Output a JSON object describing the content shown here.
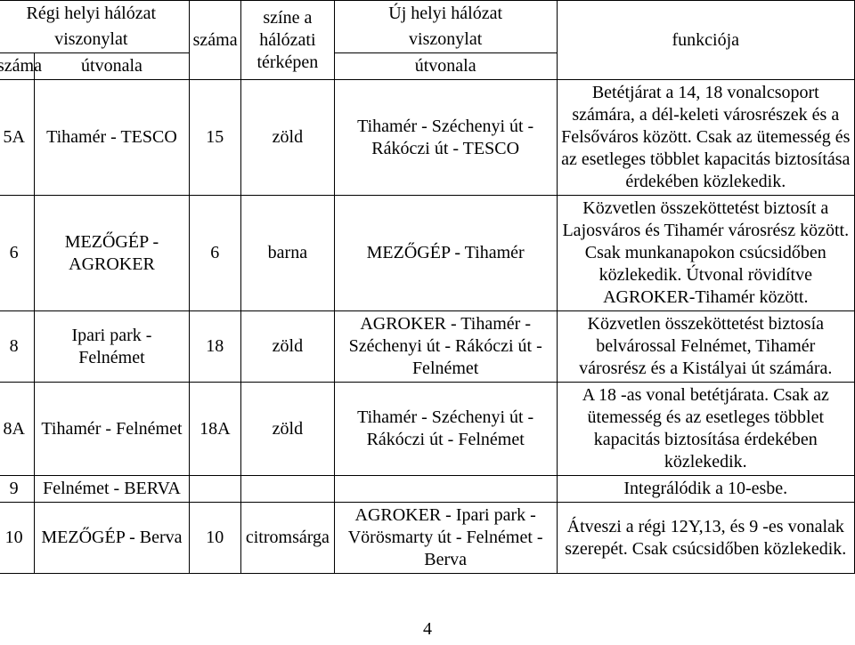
{
  "header": {
    "group_left": "Régi helyi hálózat viszonylat",
    "group_right": "Új helyi hálózat viszonylat",
    "col1": "száma",
    "col2": "útvonala",
    "col3": "száma",
    "col4": "színe a hálózati térképen",
    "col5": "útvonala",
    "col6": "funkciója"
  },
  "rows": [
    {
      "szama1": "5A",
      "ut1": "Tihamér - TESCO",
      "szama2": "15",
      "szine": "zöld",
      "ut2": "Tihamér - Széchenyi út - Rákóczi út - TESCO",
      "funk": "Betétjárat a 14, 18 vonalcsoport számára, a dél-keleti városrészek és a Felsőváros között. Csak az ütemesség és az esetleges többlet kapacitás biztosítása érdekében közlekedik."
    },
    {
      "szama1": "6",
      "ut1": "MEZŐGÉP - AGROKER",
      "szama2": "6",
      "szine": "barna",
      "ut2": "MEZŐGÉP - Tihamér",
      "funk": "Közvetlen összeköttetést biztosít a Lajosváros és Tihamér városrész között. Csak munkanapokon csúcsidőben közlekedik. Útvonal rövidítve AGROKER-Tihamér között."
    },
    {
      "szama1": "8",
      "ut1": "Ipari park - Felnémet",
      "szama2": "18",
      "szine": "zöld",
      "ut2": "AGROKER - Tihamér - Széchenyi út - Rákóczi út - Felnémet",
      "funk": "Közvetlen összeköttetést biztosía belvárossal Felnémet, Tihamér városrész és a Kistályai út számára."
    },
    {
      "szama1": "8A",
      "ut1": "Tihamér - Felnémet",
      "szama2": "18A",
      "szine": "zöld",
      "ut2": "Tihamér - Széchenyi út - Rákóczi út - Felnémet",
      "funk": "A 18 -as vonal betétjárata. Csak az ütemesség és az esetleges többlet kapacitás biztosítása érdekében közlekedik."
    },
    {
      "szama1": "9",
      "ut1": "Felnémet - BERVA",
      "szama2": "",
      "szine": "",
      "ut2": "",
      "funk": "Integrálódik a 10-esbe."
    },
    {
      "szama1": "10",
      "ut1": "MEZŐGÉP - Berva",
      "szama2": "10",
      "szine": "citromsárga",
      "ut2": "AGROKER - Ipari park - Vörösmarty út - Felnémet - Berva",
      "funk": "Átveszi a régi 12Y,13, és 9 -es vonalak szerepét. Csak csúcsidőben közlekedik."
    }
  ],
  "page_number": "4"
}
